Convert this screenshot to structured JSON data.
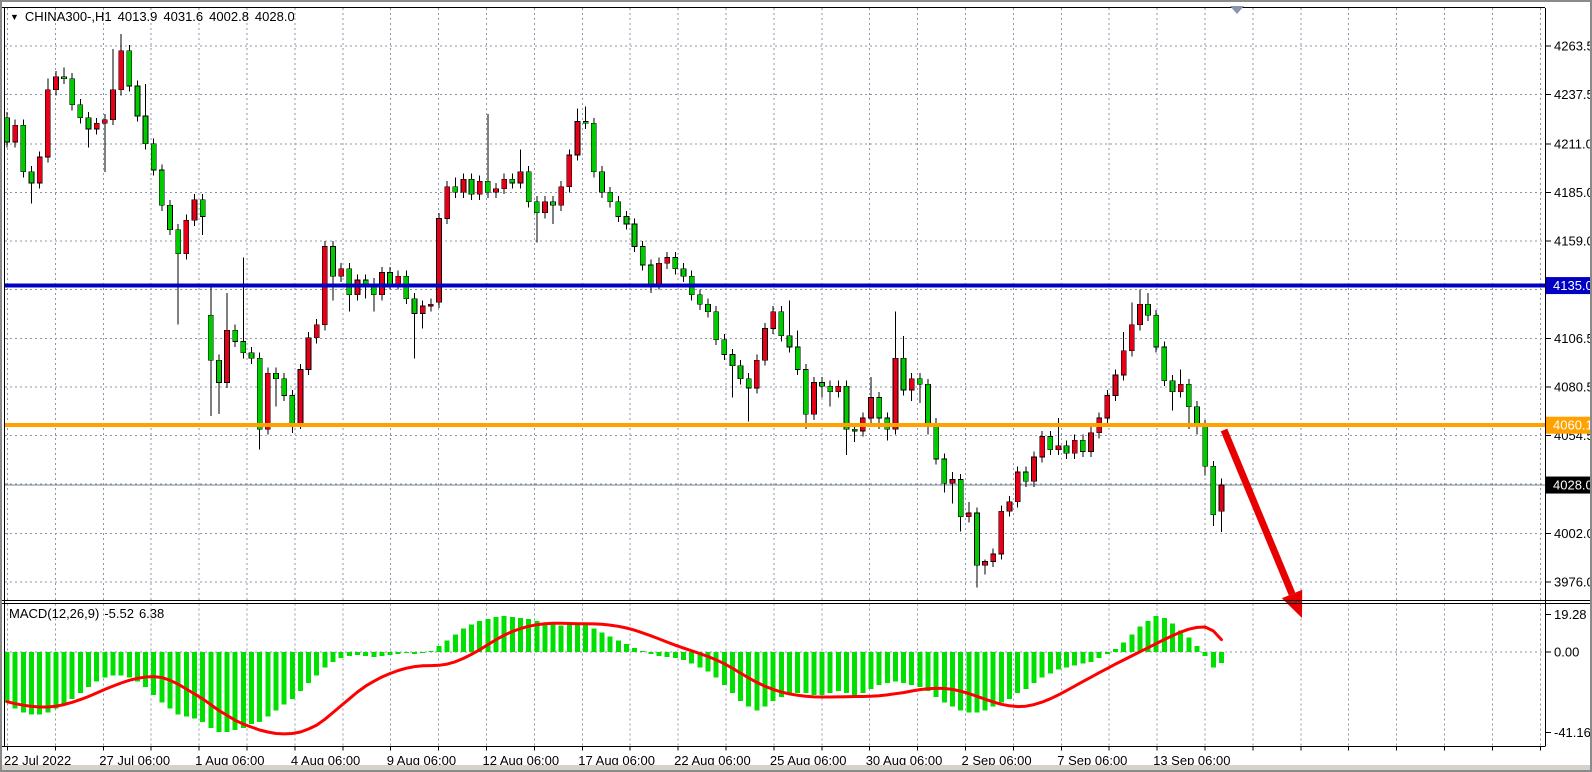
{
  "header": {
    "symbol": "CHINA300-,H1",
    "open": "4013.9",
    "high": "4031.6",
    "low": "4002.8",
    "close": "4028.0"
  },
  "macd_pane": {
    "label": "MACD(12,26,9)",
    "macd_value": "-5.52",
    "signal_value": "6.38"
  },
  "chart_data": {
    "type": "candlestick_with_macd",
    "symbol": "CHINA300-",
    "timeframe": "H1",
    "grid": true,
    "legend_position": "none",
    "price_axis": {
      "labels": [
        {
          "value": 4263.5,
          "text": "4263.5"
        },
        {
          "value": 4237.5,
          "text": "4237.5"
        },
        {
          "value": 4211.0,
          "text": "4211.0"
        },
        {
          "value": 4185.0,
          "text": "4185.0"
        },
        {
          "value": 4159.0,
          "text": "4159.0"
        },
        {
          "value": 4106.5,
          "text": "4106.5"
        },
        {
          "value": 4080.5,
          "text": "4080.5"
        },
        {
          "value": 4054.5,
          "text": "4054.5"
        },
        {
          "value": 4002.0,
          "text": "4002.0"
        },
        {
          "value": 3976.0,
          "text": "3976.0"
        }
      ],
      "grid_only_values": [
        4133.0,
        4028.5
      ],
      "range_top": 4282,
      "range_bottom": 3972
    },
    "time_axis": {
      "labels": [
        "22 Jul 2022",
        "27 Jul 06:00",
        "1 Aug 06:00",
        "4 Aug 06:00",
        "9 Aug 06:00",
        "12 Aug 06:00",
        "17 Aug 06:00",
        "22 Aug 06:00",
        "25 Aug 06:00",
        "30 Aug 06:00",
        "2 Sep 06:00",
        "7 Sep 06:00",
        "13 Sep 06:00"
      ]
    },
    "hlines": [
      {
        "price": 4135.0,
        "badge": "4135.0",
        "color": "#0000c4",
        "width": 4,
        "name": "resistance-line"
      },
      {
        "price": 4060.1,
        "badge": "4060.1",
        "color": "#ffa200",
        "width": 4,
        "name": "support-line"
      }
    ],
    "bid_line": {
      "price": 4028.0,
      "badge": "4028.0",
      "color": "#7a8594",
      "badge_bg": "#000000"
    },
    "macd_axis": {
      "labels": [
        {
          "value": 19.28,
          "text": "19.28"
        },
        {
          "value": 0,
          "text": "0.00"
        },
        {
          "value": -41.16,
          "text": "-41.16"
        }
      ]
    },
    "colors": {
      "bull_candle": "#e60017",
      "bear_candle": "#00cb00",
      "wick": "#000000",
      "grid": "#8b96a9",
      "macd_histogram": "#00e000",
      "macd_signal": "#ff0000",
      "arrow": "#e80000",
      "axis_text": "#000000",
      "frame": "#000000",
      "end_marker": "#8795ad"
    },
    "candles": [
      [
        4225,
        4228,
        4209,
        4212
      ],
      [
        4212,
        4224,
        4209,
        4221
      ],
      [
        4221,
        4224,
        4193,
        4196
      ],
      [
        4196,
        4199,
        4179,
        4190
      ],
      [
        4190,
        4207,
        4187,
        4204
      ],
      [
        4204,
        4246,
        4201,
        4240
      ],
      [
        4240,
        4250,
        4237,
        4247
      ],
      [
        4247,
        4252,
        4243,
        4246
      ],
      [
        4246,
        4249,
        4229,
        4232
      ],
      [
        4232,
        4235,
        4222,
        4225
      ],
      [
        4225,
        4228,
        4209,
        4219
      ],
      [
        4219,
        4225,
        4216,
        4222
      ],
      [
        4222,
        4227,
        4196,
        4224
      ],
      [
        4224,
        4262,
        4221,
        4240
      ],
      [
        4240,
        4270,
        4237,
        4261
      ],
      [
        4261,
        4264,
        4239,
        4242
      ],
      [
        4242,
        4245,
        4223,
        4226
      ],
      [
        4226,
        4243,
        4208,
        4211
      ],
      [
        4211,
        4214,
        4194,
        4197
      ],
      [
        4197,
        4200,
        4175,
        4178
      ],
      [
        4178,
        4181,
        4162,
        4165
      ],
      [
        4165,
        4168,
        4114,
        4152
      ],
      [
        4152,
        4173,
        4149,
        4170
      ],
      [
        4170,
        4184,
        4167,
        4181
      ],
      [
        4181,
        4184,
        4162,
        4172
      ],
      [
        4119,
        4134,
        4065,
        4095
      ],
      [
        4095,
        4098,
        4066,
        4083
      ],
      [
        4083,
        4131,
        4080,
        4111
      ],
      [
        4111,
        4114,
        4102,
        4105
      ],
      [
        4105,
        4150,
        4096,
        4099
      ],
      [
        4099,
        4102,
        4093,
        4096
      ],
      [
        4096,
        4099,
        4047,
        4058
      ],
      [
        4058,
        4091,
        4055,
        4088
      ],
      [
        4088,
        4091,
        4070,
        4085
      ],
      [
        4085,
        4088,
        4073,
        4076
      ],
      [
        4076,
        4079,
        4056,
        4061
      ],
      [
        4061,
        4093,
        4058,
        4090
      ],
      [
        4090,
        4110,
        4087,
        4107
      ],
      [
        4107,
        4117,
        4104,
        4114
      ],
      [
        4114,
        4159,
        4111,
        4156
      ],
      [
        4156,
        4159,
        4127,
        4140
      ],
      [
        4140,
        4147,
        4137,
        4144
      ],
      [
        4144,
        4147,
        4121,
        4130
      ],
      [
        4130,
        4141,
        4127,
        4138
      ],
      [
        4138,
        4141,
        4128,
        4136
      ],
      [
        4136,
        4139,
        4121,
        4130
      ],
      [
        4130,
        4145,
        4127,
        4142
      ],
      [
        4142,
        4145,
        4133,
        4136
      ],
      [
        4136,
        4143,
        4133,
        4140
      ],
      [
        4140,
        4143,
        4125,
        4128
      ],
      [
        4128,
        4131,
        4096,
        4120
      ],
      [
        4120,
        4127,
        4112,
        4124
      ],
      [
        4124,
        4128,
        4121,
        4125
      ],
      [
        4126,
        4174,
        4123,
        4171
      ],
      [
        4171,
        4191,
        4168,
        4188
      ],
      [
        4188,
        4193,
        4182,
        4185
      ],
      [
        4185,
        4195,
        4182,
        4192
      ],
      [
        4192,
        4195,
        4181,
        4184
      ],
      [
        4184,
        4194,
        4181,
        4191
      ],
      [
        4191,
        4227,
        4182,
        4185
      ],
      [
        4185,
        4190,
        4182,
        4187
      ],
      [
        4187,
        4195,
        4184,
        4192
      ],
      [
        4192,
        4195,
        4187,
        4190
      ],
      [
        4190,
        4208,
        4187,
        4196
      ],
      [
        4196,
        4199,
        4177,
        4180
      ],
      [
        4180,
        4183,
        4158,
        4174
      ],
      [
        4174,
        4183,
        4171,
        4180
      ],
      [
        4180,
        4183,
        4168,
        4178
      ],
      [
        4178,
        4191,
        4175,
        4188
      ],
      [
        4188,
        4208,
        4185,
        4205
      ],
      [
        4205,
        4230,
        4202,
        4223
      ],
      [
        4223,
        4231,
        4219,
        4222
      ],
      [
        4222,
        4225,
        4193,
        4196
      ],
      [
        4196,
        4199,
        4182,
        4185
      ],
      [
        4185,
        4188,
        4177,
        4180
      ],
      [
        4180,
        4183,
        4169,
        4172
      ],
      [
        4172,
        4175,
        4165,
        4168
      ],
      [
        4168,
        4171,
        4153,
        4156
      ],
      [
        4156,
        4159,
        4143,
        4146
      ],
      [
        4146,
        4149,
        4131,
        4136
      ],
      [
        4136,
        4150,
        4133,
        4147
      ],
      [
        4147,
        4153,
        4144,
        4150
      ],
      [
        4150,
        4153,
        4141,
        4144
      ],
      [
        4144,
        4147,
        4137,
        4140
      ],
      [
        4140,
        4143,
        4127,
        4130
      ],
      [
        4130,
        4133,
        4122,
        4125
      ],
      [
        4125,
        4128,
        4118,
        4121
      ],
      [
        4121,
        4124,
        4103,
        4106
      ],
      [
        4106,
        4109,
        4095,
        4098
      ],
      [
        4098,
        4101,
        4075,
        4092
      ],
      [
        4092,
        4095,
        4082,
        4085
      ],
      [
        4085,
        4088,
        4062,
        4080
      ],
      [
        4080,
        4098,
        4077,
        4095
      ],
      [
        4095,
        4115,
        4092,
        4112
      ],
      [
        4112,
        4124,
        4109,
        4121
      ],
      [
        4121,
        4124,
        4105,
        4108
      ],
      [
        4108,
        4127,
        4099,
        4102
      ],
      [
        4102,
        4111,
        4087,
        4090
      ],
      [
        4090,
        4093,
        4058,
        4066
      ],
      [
        4066,
        4086,
        4063,
        4083
      ],
      [
        4083,
        4086,
        4075,
        4081
      ],
      [
        4081,
        4084,
        4070,
        4078
      ],
      [
        4078,
        4084,
        4075,
        4081
      ],
      [
        4081,
        4084,
        4044,
        4058
      ],
      [
        4058,
        4061,
        4051,
        4057
      ],
      [
        4057,
        4067,
        4054,
        4064
      ],
      [
        4064,
        4086,
        4061,
        4075
      ],
      [
        4075,
        4078,
        4058,
        4064
      ],
      [
        4064,
        4067,
        4052,
        4058
      ],
      [
        4058,
        4121,
        4055,
        4096
      ],
      [
        4096,
        4108,
        4076,
        4079
      ],
      [
        4079,
        4088,
        4073,
        4085
      ],
      [
        4085,
        4088,
        4072,
        4082
      ],
      [
        4082,
        4085,
        4055,
        4061
      ],
      [
        4061,
        4064,
        4039,
        4042
      ],
      [
        4042,
        4045,
        4024,
        4029
      ],
      [
        4029,
        4035,
        4018,
        4031
      ],
      [
        4031,
        4034,
        4003,
        4011
      ],
      [
        4011,
        4019,
        4008,
        4013
      ],
      [
        4013,
        4016,
        3973,
        3985
      ],
      [
        3985,
        3988,
        3980,
        3987
      ],
      [
        3987,
        3994,
        3984,
        3991
      ],
      [
        3991,
        4017,
        3988,
        4014
      ],
      [
        4014,
        4022,
        4011,
        4019
      ],
      [
        4019,
        4038,
        4016,
        4035
      ],
      [
        4035,
        4038,
        4027,
        4030
      ],
      [
        4030,
        4046,
        4027,
        4043
      ],
      [
        4043,
        4057,
        4040,
        4054
      ],
      [
        4054,
        4057,
        4044,
        4047
      ],
      [
        4047,
        4064,
        4044,
        4049
      ],
      [
        4049,
        4052,
        4042,
        4045
      ],
      [
        4045,
        4055,
        4042,
        4052
      ],
      [
        4052,
        4055,
        4043,
        4046
      ],
      [
        4046,
        4059,
        4043,
        4056
      ],
      [
        4056,
        4067,
        4053,
        4064
      ],
      [
        4064,
        4079,
        4061,
        4076
      ],
      [
        4076,
        4090,
        4073,
        4087
      ],
      [
        4087,
        4110,
        4084,
        4100
      ],
      [
        4100,
        4126,
        4097,
        4114
      ],
      [
        4114,
        4133,
        4111,
        4125
      ],
      [
        4125,
        4131,
        4116,
        4119
      ],
      [
        4119,
        4122,
        4099,
        4102
      ],
      [
        4102,
        4105,
        4081,
        4084
      ],
      [
        4084,
        4087,
        4068,
        4078
      ],
      [
        4078,
        4090,
        4075,
        4082
      ],
      [
        4082,
        4085,
        4058,
        4070
      ],
      [
        4070,
        4073,
        4055,
        4060
      ],
      [
        4060,
        4063,
        4033,
        4038
      ],
      [
        4038,
        4041,
        4006,
        4012
      ],
      [
        4013.9,
        4031.6,
        4002.8,
        4028.0
      ]
    ],
    "macd": {
      "histogram": [
        -26,
        -29,
        -31,
        -32,
        -32,
        -31,
        -29,
        -27,
        -24,
        -21,
        -18,
        -15,
        -13,
        -12,
        -12,
        -13,
        -15,
        -18,
        -22,
        -26,
        -29,
        -32,
        -33,
        -34,
        -36,
        -39,
        -41,
        -41,
        -40,
        -39,
        -37,
        -36,
        -33,
        -30,
        -27,
        -24,
        -20,
        -16,
        -12,
        -8,
        -5,
        -3,
        -2,
        -1.5,
        -2,
        -2.5,
        -2,
        -1.5,
        -1,
        -0.5,
        -1,
        -0.5,
        0.5,
        3,
        6,
        9,
        12,
        14,
        16,
        17,
        18,
        18.5,
        18,
        17.5,
        17,
        16,
        15,
        14,
        13.5,
        14,
        15,
        14,
        12,
        10,
        8,
        6,
        4,
        2,
        0.5,
        -1,
        -2,
        -2.5,
        -3,
        -4,
        -6,
        -8,
        -10,
        -13,
        -17,
        -21,
        -25,
        -28,
        -30,
        -28,
        -25,
        -23,
        -22,
        -21,
        -21,
        -22,
        -22,
        -21,
        -20,
        -21,
        -22,
        -21,
        -19,
        -17,
        -16,
        -15,
        -16,
        -17,
        -18,
        -20,
        -23,
        -26,
        -28,
        -30,
        -31,
        -31,
        -30,
        -28,
        -26,
        -24,
        -21,
        -19,
        -16,
        -13,
        -11,
        -9,
        -8,
        -7,
        -6,
        -5,
        -3,
        -1,
        1.5,
        5,
        9,
        13,
        16,
        18.5,
        17.5,
        14.5,
        11,
        7.5,
        3,
        -2,
        -8,
        -5.52
      ],
      "signal": [
        -25.5,
        -26.5,
        -27.3,
        -27.9,
        -28.2,
        -28.2,
        -27.8,
        -27,
        -25.8,
        -24.4,
        -22.8,
        -21,
        -19.2,
        -17.5,
        -15.9,
        -14.5,
        -13.5,
        -12.8,
        -12.6,
        -13.1,
        -14.5,
        -16.5,
        -19,
        -21.5,
        -24,
        -27,
        -30,
        -32.5,
        -35,
        -37,
        -38.5,
        -40,
        -41,
        -41.8,
        -42,
        -41.8,
        -41,
        -39.5,
        -37.5,
        -34.5,
        -31,
        -27.5,
        -24,
        -20.5,
        -17.5,
        -15,
        -12.8,
        -11,
        -9.5,
        -8.3,
        -7.5,
        -7.1,
        -7,
        -6.8,
        -6.2,
        -5,
        -3.3,
        -1.2,
        1.2,
        3.8,
        6.3,
        8.6,
        10.5,
        12,
        13.2,
        14,
        14.5,
        14.7,
        14.7,
        14.6,
        14.5,
        14.5,
        14.4,
        14.2,
        13.8,
        13.2,
        12.3,
        11.2,
        9.8,
        8.3,
        6.7,
        5.1,
        3.5,
        2,
        0.6,
        -0.8,
        -2.3,
        -4,
        -6,
        -8.3,
        -10.8,
        -13.3,
        -15.6,
        -17.6,
        -19.2,
        -20.5,
        -21.5,
        -22.2,
        -22.7,
        -23,
        -23.1,
        -23.1,
        -23,
        -22.9,
        -22.8,
        -22.8,
        -22.7,
        -22.4,
        -22,
        -21.4,
        -20.8,
        -20,
        -19.3,
        -18.8,
        -18.6,
        -18.7,
        -19.2,
        -20.1,
        -21.3,
        -22.7,
        -24.2,
        -25.6,
        -26.8,
        -27.6,
        -28,
        -27.8,
        -27,
        -25.7,
        -24,
        -22,
        -19.8,
        -17.5,
        -15.2,
        -12.9,
        -10.6,
        -8.4,
        -6.2,
        -4.1,
        -2,
        0.1,
        2.2,
        4.3,
        6.4,
        8.4,
        10.2,
        11.7,
        12.6,
        12.8,
        10.8,
        6.38
      ]
    },
    "annotation": {
      "type": "arrow-down-right",
      "from_xy": [
        1222,
        428
      ],
      "to_xy": [
        1300,
        616
      ]
    }
  }
}
